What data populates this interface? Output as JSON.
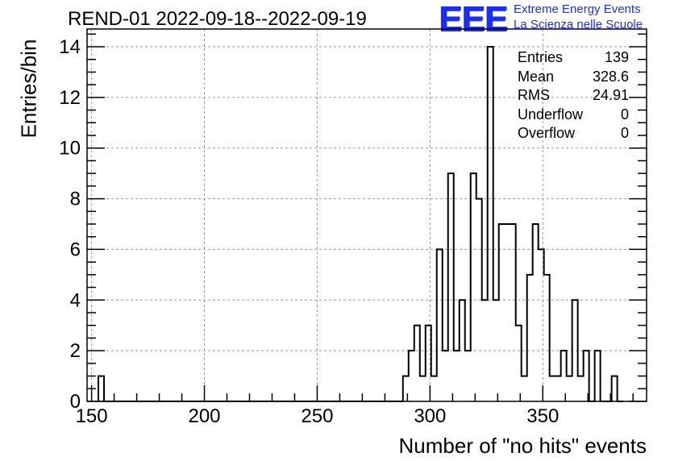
{
  "chart_data": {
    "type": "histogram",
    "title": "REND-01 2022-09-18--2022-09-19",
    "xlabel": "Number of \"no hits\" events",
    "ylabel": "Entries/bin",
    "xlim": [
      148,
      396
    ],
    "ylim": [
      0,
      14.7
    ],
    "xticks": [
      "150",
      "200",
      "250",
      "300",
      "350"
    ],
    "yticks": [
      "0",
      "2",
      "4",
      "6",
      "8",
      "10",
      "12",
      "14"
    ],
    "xtick_values": [
      150,
      200,
      250,
      300,
      350
    ],
    "ytick_values": [
      0,
      2,
      4,
      6,
      8,
      10,
      12,
      14
    ],
    "grid": true,
    "bin_width": 2.5,
    "bins_start": 153,
    "counts": [
      1,
      0,
      0,
      0,
      0,
      0,
      0,
      0,
      0,
      0,
      0,
      0,
      0,
      0,
      0,
      0,
      0,
      0,
      0,
      0,
      0,
      0,
      0,
      0,
      0,
      0,
      0,
      0,
      0,
      0,
      0,
      0,
      0,
      0,
      0,
      0,
      0,
      0,
      0,
      0,
      0,
      0,
      0,
      0,
      0,
      0,
      0,
      0,
      0,
      0,
      0,
      0,
      0,
      0,
      1,
      2,
      3,
      1,
      3,
      1,
      6,
      2,
      9,
      2,
      4,
      2,
      9,
      8,
      4,
      14,
      4,
      7,
      7,
      7,
      3,
      1,
      5,
      7,
      6,
      5,
      1,
      1,
      2,
      1,
      4,
      1,
      2,
      0,
      2,
      0,
      0,
      1,
      0
    ],
    "stats": [
      {
        "label": "Entries",
        "value": "139"
      },
      {
        "label": "Mean",
        "value": "328.6"
      },
      {
        "label": "RMS",
        "value": "24.91"
      },
      {
        "label": "Underflow",
        "value": "0"
      },
      {
        "label": "Overflow",
        "value": "0"
      }
    ]
  },
  "logo": {
    "mark": "EEE",
    "line1": "Extreme Energy Events",
    "line2": "La Scienza nelle Scuole",
    "color": "#1a2cff"
  }
}
